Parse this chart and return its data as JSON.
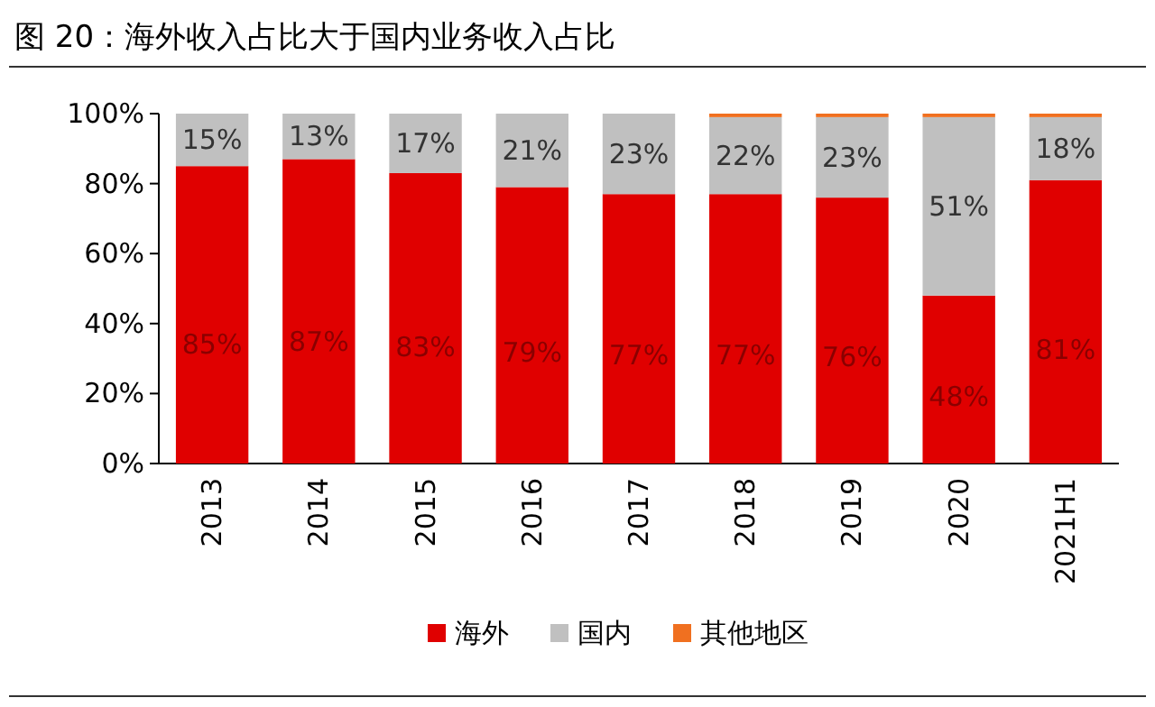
{
  "chart_data": {
    "type": "bar",
    "title": "图 20：海外收入占比大于国内业务收入占比",
    "stacked": true,
    "legend": "bottom",
    "categories": [
      "2013",
      "2014",
      "2015",
      "2016",
      "2017",
      "2018",
      "2019",
      "2020",
      "2021H1"
    ],
    "series": [
      {
        "name": "海外",
        "color": "#e00000",
        "values": [
          85,
          87,
          83,
          79,
          77,
          77,
          76,
          48,
          81
        ],
        "value_labels": [
          "85%",
          "87%",
          "83%",
          "79%",
          "77%",
          "77%",
          "76%",
          "48%",
          "81%"
        ]
      },
      {
        "name": "国内",
        "color": "#c0c0c0",
        "values": [
          15,
          13,
          17,
          21,
          23,
          22,
          23,
          51,
          18
        ],
        "value_labels": [
          "15%",
          "13%",
          "17%",
          "21%",
          "23%",
          "22%",
          "23%",
          "51%",
          "18%"
        ]
      },
      {
        "name": "其他地区",
        "color": "#f07020",
        "values": [
          0,
          0,
          0,
          0,
          0,
          1,
          1,
          1,
          1
        ]
      }
    ],
    "ylim": [
      0,
      100
    ],
    "yticks": [
      {
        "value": 0,
        "label": "0%"
      },
      {
        "value": 20,
        "label": "20%"
      },
      {
        "value": 40,
        "label": "40%"
      },
      {
        "value": 60,
        "label": "60%"
      },
      {
        "value": 80,
        "label": "80%"
      },
      {
        "value": 100,
        "label": "100%"
      }
    ]
  }
}
